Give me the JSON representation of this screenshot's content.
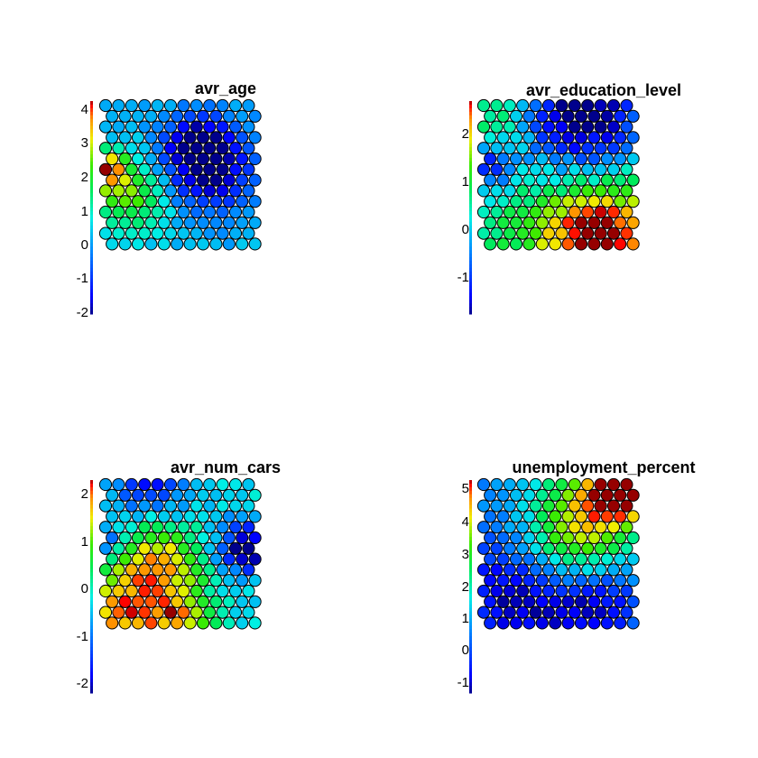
{
  "chart_data": [
    {
      "type": "heatmap",
      "title": "avr_age",
      "scale_ticks": [
        "4",
        "3",
        "2",
        "1",
        "0",
        "-1",
        "-2"
      ],
      "range": [
        -2,
        4.3
      ],
      "grid": "hexagonal, 14 rows x 12 columns, alternate rows offset",
      "seed": 11,
      "blobs": [
        {
          "x": 0.68,
          "y": 0.45,
          "a": -2.6,
          "s": 0.22
        },
        {
          "x": 0.6,
          "y": 0.25,
          "a": -1.8,
          "s": 0.12
        },
        {
          "x": 0.0,
          "y": 0.45,
          "a": 3.4,
          "s": 0.08
        },
        {
          "x": 0.1,
          "y": 0.6,
          "a": 1.8,
          "s": 0.18
        },
        {
          "x": 0.25,
          "y": 0.7,
          "a": 0.8,
          "s": 0.2
        }
      ],
      "base": 0.3
    },
    {
      "type": "heatmap",
      "title": "avr_education_level",
      "scale_ticks": [
        "2",
        "1",
        "0",
        "-1"
      ],
      "range": [
        -1.8,
        2.6
      ],
      "grid": "hexagonal, 14 rows x 12 columns, alternate rows offset",
      "seed": 23,
      "blobs": [
        {
          "x": 0.65,
          "y": 0.05,
          "a": -2.2,
          "s": 0.3
        },
        {
          "x": 0.05,
          "y": 0.45,
          "a": -1.5,
          "s": 0.1
        },
        {
          "x": 0.85,
          "y": 0.95,
          "a": 2.4,
          "s": 0.28
        },
        {
          "x": 0.45,
          "y": 0.95,
          "a": 1.0,
          "s": 0.3
        },
        {
          "x": 0.1,
          "y": 0.05,
          "a": 0.9,
          "s": 0.2
        }
      ],
      "base": 0.1
    },
    {
      "type": "heatmap",
      "title": "avr_num_cars",
      "scale_ticks": [
        "2",
        "1",
        "0",
        "-1",
        "-2"
      ],
      "range": [
        -2.2,
        2.4
      ],
      "grid": "hexagonal, 14 rows x 12 columns, alternate rows offset",
      "seed": 37,
      "blobs": [
        {
          "x": 0.35,
          "y": 0.55,
          "a": 1.9,
          "s": 0.2
        },
        {
          "x": 0.1,
          "y": 0.95,
          "a": 2.1,
          "s": 0.22
        },
        {
          "x": 0.5,
          "y": 0.95,
          "a": 1.6,
          "s": 0.15
        },
        {
          "x": 0.95,
          "y": 0.45,
          "a": -2.2,
          "s": 0.14
        },
        {
          "x": 0.3,
          "y": 0.02,
          "a": -1.4,
          "s": 0.18
        },
        {
          "x": 0.02,
          "y": 0.42,
          "a": -1.2,
          "s": 0.08
        }
      ],
      "base": -0.2
    },
    {
      "type": "heatmap",
      "title": "unemployment_percent",
      "scale_ticks": [
        "5",
        "4",
        "3",
        "2",
        "1",
        "0",
        "-1"
      ],
      "range": [
        -1.5,
        5.3
      ],
      "grid": "hexagonal, 14 rows x 12 columns, alternate rows offset",
      "seed": 51,
      "blobs": [
        {
          "x": 0.95,
          "y": 0.02,
          "a": 5.5,
          "s": 0.14
        },
        {
          "x": 0.75,
          "y": 0.15,
          "a": 3.4,
          "s": 0.28
        },
        {
          "x": 0.55,
          "y": 0.45,
          "a": 1.8,
          "s": 0.22
        },
        {
          "x": 0.25,
          "y": 0.8,
          "a": -1.8,
          "s": 0.3
        },
        {
          "x": 0.75,
          "y": 0.85,
          "a": -1.4,
          "s": 0.2
        }
      ],
      "base": 0.4
    }
  ]
}
